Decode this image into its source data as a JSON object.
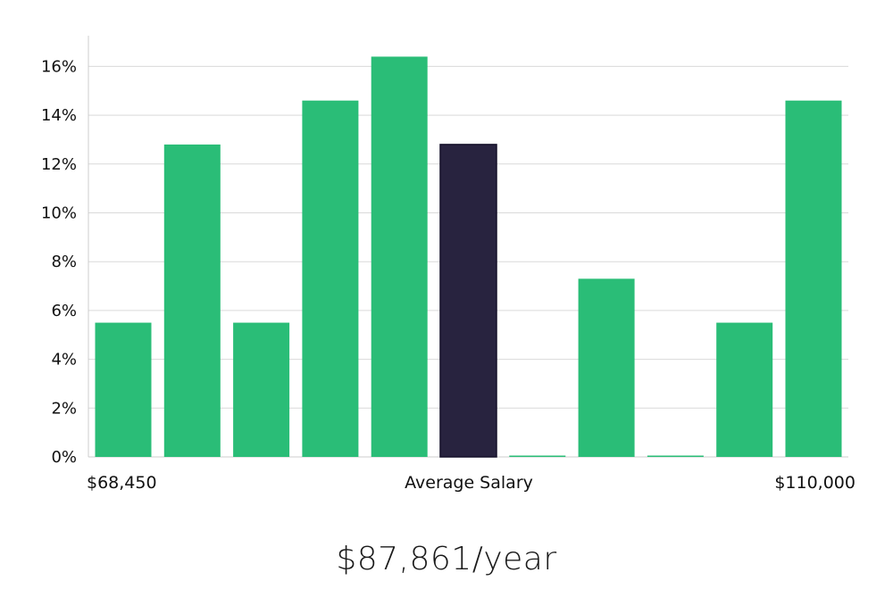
{
  "chart_data": {
    "type": "bar",
    "title": "",
    "xlabel": "Average Salary",
    "ylabel": "",
    "x_range_labels": {
      "min": "$68,450",
      "max": "$110,000"
    },
    "ylim": [
      0,
      17
    ],
    "yticks": [
      0,
      2,
      4,
      6,
      8,
      10,
      12,
      14,
      16
    ],
    "ytick_suffix": "%",
    "grid": true,
    "values": [
      5.5,
      12.8,
      5.5,
      14.6,
      16.4,
      12.8,
      0,
      7.3,
      0,
      5.5,
      14.6
    ],
    "highlight_index": 5,
    "colors": {
      "bar": "#2abd77",
      "highlight": "#28233f",
      "grid": "#d9d9d9",
      "axis": "#cccccc"
    }
  },
  "salary_text": "$87,861/year"
}
